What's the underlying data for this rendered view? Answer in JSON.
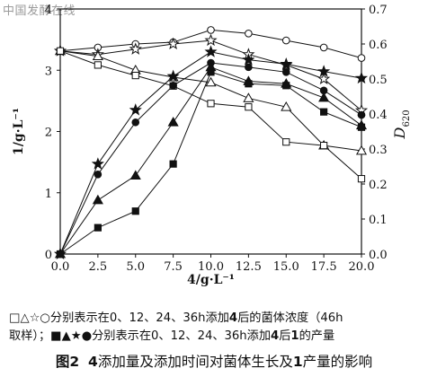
{
  "watermark": "中国发酵在线",
  "chart_data": {
    "type": "line",
    "xlabel": "4/g·L⁻¹",
    "ylabel_left": "1/g·L⁻¹",
    "ylabel_right_main": "D",
    "ylabel_right_sub": "620",
    "xlim": [
      0,
      20
    ],
    "ylim_left": [
      0,
      4
    ],
    "ylim_right": [
      0,
      0.7
    ],
    "x_ticks": [
      "0.0",
      "2.5",
      "5.0",
      "7.5",
      "10.0",
      "12.5",
      "15.0",
      "17.5",
      "20.0"
    ],
    "y_left_ticks": [
      "0",
      "1",
      "2",
      "3",
      "4"
    ],
    "y_right_ticks": [
      "0.0",
      "0.1",
      "0.2",
      "0.3",
      "0.4",
      "0.5",
      "0.6",
      "0.7"
    ],
    "x": [
      0,
      2.5,
      5,
      7.5,
      10,
      12.5,
      15,
      17.5,
      20
    ],
    "series": [
      {
        "axis": "right",
        "marker": "circle-open",
        "values": [
          0.58,
          0.59,
          0.6,
          0.605,
          0.64,
          0.63,
          0.61,
          0.59,
          0.56
        ]
      },
      {
        "axis": "right",
        "marker": "star-open",
        "values": [
          0.58,
          0.57,
          0.585,
          0.6,
          0.61,
          0.57,
          0.54,
          0.5,
          0.41
        ]
      },
      {
        "axis": "right",
        "marker": "triangle-open",
        "values": [
          0.58,
          0.565,
          0.525,
          0.505,
          0.49,
          0.445,
          0.42,
          0.31,
          0.295
        ]
      },
      {
        "axis": "right",
        "marker": "square-open",
        "values": [
          0.58,
          0.54,
          0.51,
          0.48,
          0.43,
          0.42,
          0.32,
          0.31,
          0.215
        ]
      },
      {
        "axis": "left",
        "marker": "star-filled",
        "values": [
          0,
          1.47,
          2.35,
          2.9,
          3.3,
          3.17,
          3.1,
          2.98,
          2.87
        ]
      },
      {
        "axis": "left",
        "marker": "circle-filled",
        "values": [
          0,
          1.3,
          2.15,
          2.75,
          3.12,
          3.05,
          2.97,
          2.67,
          2.27
        ]
      },
      {
        "axis": "left",
        "marker": "triangle-filled",
        "values": [
          0,
          0.88,
          1.28,
          2.15,
          3.05,
          2.82,
          2.78,
          2.55,
          2.1
        ]
      },
      {
        "axis": "left",
        "marker": "square-filled",
        "values": [
          0,
          0.43,
          0.7,
          1.47,
          2.97,
          2.78,
          2.75,
          2.32,
          2.07
        ]
      }
    ]
  },
  "legend": {
    "line1_a": "□△☆○分别表示在0、12、24、36h添加",
    "line1_b": "4",
    "line1_c": "后的菌体浓度（46h",
    "line2_a": "取样）；■▲★●分别表示在0、12、24、36h添加",
    "line2_b": "4",
    "line2_c": "后",
    "line2_d": "1",
    "line2_e": "的产量"
  },
  "caption": {
    "fig_no": "图2",
    "b1": "4",
    "t1": "添加量及添加时间对菌体生长及",
    "b2": "1",
    "t2": "产量的影响"
  }
}
